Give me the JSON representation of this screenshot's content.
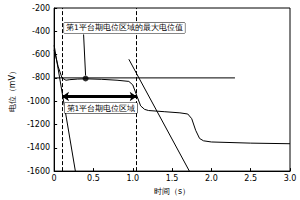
{
  "chart_data": {
    "type": "line",
    "xlabel": "时间（s）",
    "ylabel": "电位（mV）",
    "xlim": [
      0,
      3
    ],
    "xticks": [
      0,
      0.5,
      {
        "value": 1,
        "label": "1.0"
      },
      1.5,
      {
        "value": 2,
        "label": "2.0"
      },
      2.5,
      {
        "value": 3,
        "label": "3.0"
      }
    ],
    "ylim": [
      -1600,
      -200
    ],
    "yticks": [
      -1600,
      -1400,
      -1200,
      -1000,
      -800,
      -600,
      -400,
      -200
    ],
    "grid": false,
    "series": [
      {
        "color": "#000000",
        "line_style": "solid",
        "x": [
          0,
          0.05,
          0.1,
          0.15,
          0.2,
          0.3,
          0.4,
          0.6,
          0.8,
          0.95,
          1.0,
          1.05,
          1.1,
          1.15,
          1.2,
          1.4,
          1.6,
          1.7,
          1.75,
          1.8,
          1.85,
          1.9,
          2.0,
          2.5,
          3.0
        ],
        "values": [
          -560,
          -700,
          -800,
          -820,
          -815,
          -810,
          -808,
          -812,
          -820,
          -830,
          -860,
          -950,
          -1040,
          -1070,
          -1080,
          -1090,
          -1100,
          -1110,
          -1150,
          -1250,
          -1320,
          -1340,
          -1350,
          -1360,
          -1365
        ]
      },
      {
        "color": "#000000",
        "line_style": "solid",
        "x": [
          0,
          0.27
        ],
        "values": [
          -520,
          -1600
        ]
      },
      {
        "color": "#000000",
        "line_style": "solid",
        "x": [
          0.95,
          1.72
        ],
        "values": [
          -640,
          -1600
        ]
      },
      {
        "color": "#000000",
        "line_style": "solid",
        "x": [
          0,
          2.3
        ],
        "values": [
          -800,
          -800
        ]
      }
    ],
    "vlines": [
      0.1,
      1.05
    ],
    "points": [
      {
        "x": 0.4,
        "y": -805,
        "label": "第1平台期电位区域的最大电位值",
        "color": "#000000"
      }
    ],
    "ranges": [
      {
        "x": [
          0.1,
          1.05
        ],
        "y": -960,
        "label": "第1平台期电位区域",
        "color": "#000000"
      }
    ]
  }
}
